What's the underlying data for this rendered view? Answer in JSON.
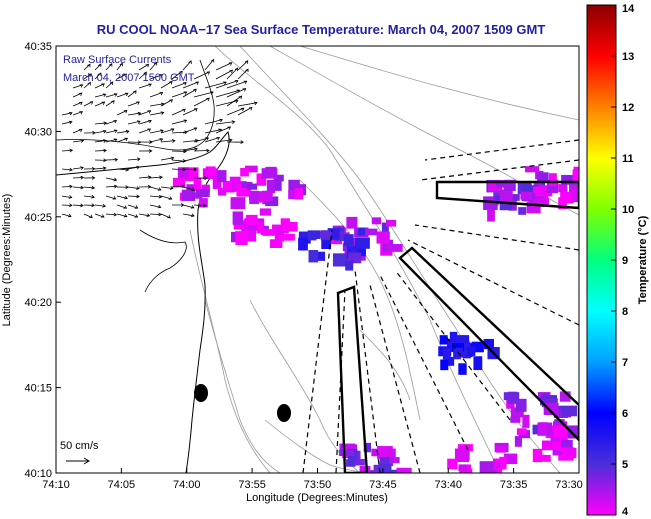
{
  "chart_data": {
    "type": "heatmap",
    "title": "RU COOL  NOAA−17  Sea Surface Temperature:  March 04, 2007 1509 GMT",
    "xlabel": "Longitude (Degrees:Minutes)",
    "ylabel": "Latitude (Degrees:Minutes)",
    "x_ticks": [
      "74:10",
      "74:05",
      "74:00",
      "73:55",
      "73:50",
      "73:45",
      "73:40",
      "73:35",
      "73:30"
    ],
    "y_ticks": [
      "40:10",
      "40:15",
      "40:20",
      "40:25",
      "40:30",
      "40:35"
    ],
    "xlim": [
      -74.1667,
      -73.5
    ],
    "ylim": [
      40.1667,
      40.5833
    ],
    "legend": [
      "Raw Surface Currents",
      "March 04, 2007 1500 GMT"
    ],
    "scale_label": "50 cm/s",
    "colorbar": {
      "label": "Temperature (°C)",
      "range": [
        4,
        14
      ],
      "ticks": [
        "4",
        "5",
        "6",
        "7",
        "8",
        "9",
        "10",
        "11",
        "12",
        "13",
        "14"
      ],
      "stops": [
        "#ff00ff",
        "#4a2fd8",
        "#0000ff",
        "#00a0ff",
        "#00ffff",
        "#00ff80",
        "#80ff00",
        "#ffff00",
        "#ff8000",
        "#ff0000",
        "#8b0000"
      ]
    },
    "sst_patches": [
      {
        "lon": -73.98,
        "lat": 40.45,
        "temp": 4.2
      },
      {
        "lon": -73.9,
        "lat": 40.45,
        "temp": 4.3
      },
      {
        "lon": -73.91,
        "lat": 40.41,
        "temp": 4.2
      },
      {
        "lon": -73.78,
        "lat": 40.4,
        "temp": 4.5
      },
      {
        "lon": -73.82,
        "lat": 40.39,
        "temp": 5.2
      },
      {
        "lon": -73.59,
        "lat": 40.44,
        "temp": 4.6
      },
      {
        "lon": -73.54,
        "lat": 40.45,
        "temp": 4.3
      },
      {
        "lon": -73.56,
        "lat": 40.23,
        "temp": 4.6
      },
      {
        "lon": -73.55,
        "lat": 40.2,
        "temp": 4.2
      },
      {
        "lon": -73.63,
        "lat": 40.18,
        "temp": 4.1
      },
      {
        "lon": -73.77,
        "lat": 40.18,
        "temp": 4.6
      },
      {
        "lon": -73.65,
        "lat": 40.29,
        "temp": 5.6
      }
    ]
  }
}
